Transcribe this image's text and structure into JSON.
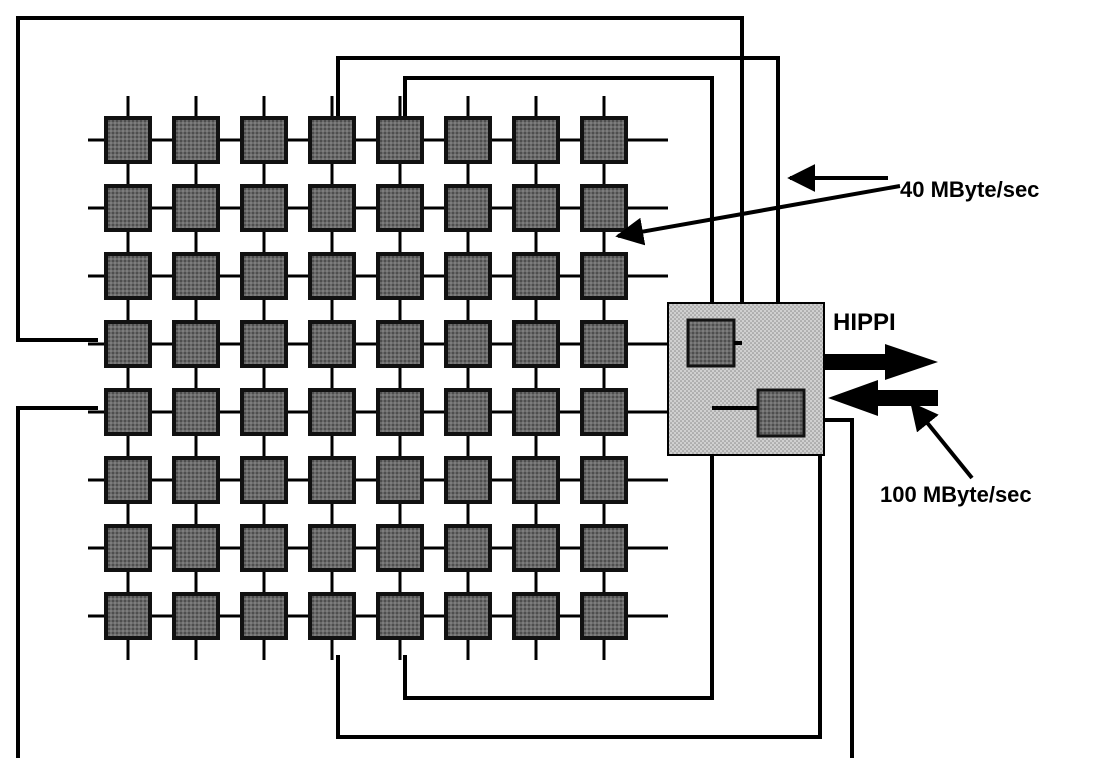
{
  "labels": {
    "link_rate": "40 MByte/sec",
    "hippi": "HIPPI",
    "hippi_rate": "100 MByte/sec"
  },
  "mesh": {
    "rows": 8,
    "cols": 8
  },
  "colors": {
    "node_fill": "#5a5a5a",
    "node_border": "#111111",
    "hippi_fill": "#bdbdbd",
    "line": "#000000"
  }
}
